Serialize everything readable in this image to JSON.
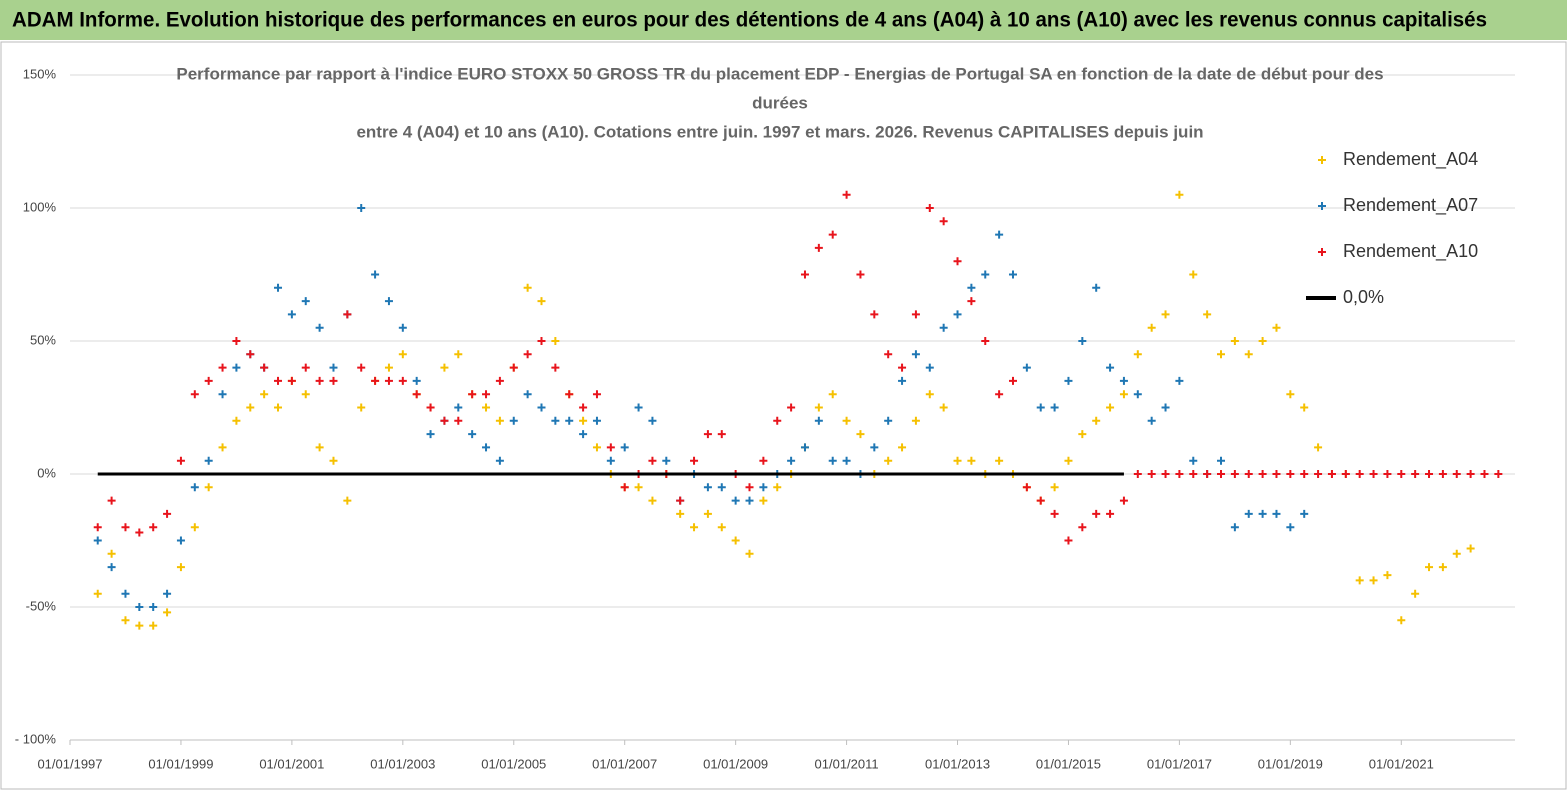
{
  "header": {
    "title": "ADAM Informe. Evolution historique des performances en euros pour des détentions de 4 ans (A04) à 10 ans (A10) avec les revenus connus capitalisés"
  },
  "chart_data": {
    "type": "scatter",
    "title": [
      "Performance par rapport à l'indice EURO STOXX 50 GROSS TR  du placement EDP - Energias de Portugal SA en fonction de la date de début pour des",
      "durées",
      "entre 4 (A04) et 10 ans (A10). Cotations entre juin. 1997 et mars. 2026. Revenus CAPITALISES depuis juin"
    ],
    "x": [
      1997.5,
      1997.75,
      1998,
      1998.25,
      1998.5,
      1998.75,
      1999,
      1999.25,
      1999.5,
      1999.75,
      2000,
      2000.25,
      2000.5,
      2000.75,
      2001,
      2001.25,
      2001.5,
      2001.75,
      2002,
      2002.25,
      2002.5,
      2002.75,
      2003,
      2003.25,
      2003.5,
      2003.75,
      2004,
      2004.25,
      2004.5,
      2004.75,
      2005,
      2005.25,
      2005.5,
      2005.75,
      2006,
      2006.25,
      2006.5,
      2006.75,
      2007,
      2007.25,
      2007.5,
      2007.75,
      2008,
      2008.25,
      2008.5,
      2008.75,
      2009,
      2009.25,
      2009.5,
      2009.75,
      2010,
      2010.25,
      2010.5,
      2010.75,
      2011,
      2011.25,
      2011.5,
      2011.75,
      2012,
      2012.25,
      2012.5,
      2012.75,
      2013,
      2013.25,
      2013.5,
      2013.75,
      2014,
      2014.25,
      2014.5,
      2014.75,
      2015,
      2015.25,
      2015.5,
      2015.75,
      2016,
      2016.25,
      2016.5,
      2016.75,
      2017,
      2017.25,
      2017.5,
      2017.75,
      2018,
      2018.25,
      2018.5,
      2018.75,
      2019,
      2019.25,
      2019.5,
      2019.75,
      2020,
      2020.25,
      2020.5,
      2020.75,
      2021,
      2021.25,
      2021.5,
      2021.75,
      2022,
      2022.25,
      2022.5,
      2022.75
    ],
    "series": [
      {
        "name": "Rendement_A04",
        "color": "#f5c000",
        "marker": "+",
        "values": [
          -45,
          -30,
          -55,
          -57,
          -57,
          -52,
          -35,
          -20,
          -5,
          10,
          20,
          25,
          30,
          25,
          35,
          30,
          10,
          5,
          -10,
          25,
          35,
          40,
          45,
          30,
          25,
          40,
          45,
          30,
          25,
          20,
          40,
          70,
          65,
          50,
          30,
          20,
          10,
          0,
          -5,
          -5,
          -10,
          0,
          -15,
          -20,
          -15,
          -20,
          -25,
          -30,
          -10,
          -5,
          0,
          10,
          25,
          30,
          20,
          15,
          0,
          5,
          10,
          20,
          30,
          25,
          5,
          5,
          0,
          5,
          0,
          -5,
          -10,
          -5,
          5,
          15,
          20,
          25,
          30,
          45,
          55,
          60,
          105,
          75,
          60,
          45,
          50,
          45,
          50,
          55,
          30,
          25,
          10,
          0,
          0,
          -40,
          -40,
          -38,
          -55,
          -45,
          -35,
          -35,
          -30,
          -28,
          null,
          null
        ]
      },
      {
        "name": "Rendement_A07",
        "color": "#1f77b4",
        "marker": "+",
        "values": [
          -25,
          -35,
          -45,
          -50,
          -50,
          -45,
          -25,
          -5,
          5,
          30,
          40,
          45,
          40,
          70,
          60,
          65,
          55,
          40,
          60,
          100,
          75,
          65,
          55,
          35,
          15,
          20,
          25,
          15,
          10,
          5,
          20,
          30,
          25,
          20,
          20,
          15,
          20,
          5,
          10,
          25,
          20,
          5,
          -10,
          0,
          -5,
          -5,
          -10,
          -10,
          -5,
          0,
          5,
          10,
          20,
          5,
          5,
          0,
          10,
          20,
          35,
          45,
          40,
          55,
          60,
          70,
          75,
          90,
          75,
          40,
          25,
          25,
          35,
          50,
          70,
          40,
          35,
          30,
          20,
          25,
          35,
          5,
          0,
          5,
          -20,
          -15,
          -15,
          -15,
          -20,
          -15,
          null,
          null,
          null,
          null,
          null,
          null,
          null,
          null,
          null,
          null,
          null,
          null,
          null,
          null
        ]
      },
      {
        "name": "Rendement_A10",
        "color": "#e8141c",
        "marker": "+",
        "values": [
          -20,
          -10,
          -20,
          -22,
          -20,
          -15,
          5,
          30,
          35,
          40,
          50,
          45,
          40,
          35,
          35,
          40,
          35,
          35,
          60,
          40,
          35,
          35,
          35,
          30,
          25,
          20,
          20,
          30,
          30,
          35,
          40,
          45,
          50,
          40,
          30,
          25,
          30,
          10,
          -5,
          0,
          5,
          0,
          -10,
          5,
          15,
          15,
          0,
          -5,
          5,
          20,
          25,
          75,
          85,
          90,
          105,
          75,
          60,
          45,
          40,
          60,
          100,
          95,
          80,
          65,
          50,
          30,
          35,
          -5,
          -10,
          -15,
          -25,
          -20,
          -15,
          -15,
          -10,
          0,
          0,
          0,
          0,
          0,
          0,
          0,
          0,
          0,
          0,
          0,
          0,
          0,
          0,
          0,
          0,
          0,
          0,
          0,
          0,
          0,
          0,
          0,
          0,
          0,
          0,
          0
        ]
      },
      {
        "name": "0,0%",
        "color": "#000000",
        "marker": "line",
        "values": [
          0,
          0,
          0,
          0,
          0,
          0,
          0,
          0,
          0,
          0,
          0,
          0,
          0,
          0,
          0,
          0,
          0,
          0,
          0,
          0,
          0,
          0,
          0,
          0,
          0,
          0,
          0,
          0,
          0,
          0,
          0,
          0,
          0,
          0,
          0,
          0,
          0,
          0,
          0,
          0,
          0,
          0,
          0,
          0,
          0,
          0,
          0,
          0,
          0,
          0,
          0,
          0,
          0,
          0,
          0,
          0,
          0,
          0,
          0,
          0,
          0,
          0,
          0,
          0,
          0,
          0,
          0,
          0,
          0,
          0,
          0,
          0,
          0,
          0,
          0,
          null,
          null,
          null,
          null,
          null,
          null,
          null,
          null,
          null,
          null,
          null,
          null,
          null,
          null,
          null,
          null,
          null,
          null,
          null,
          null,
          null,
          null,
          null,
          null,
          null,
          null,
          null
        ]
      }
    ],
    "xlim": [
      1997,
      2023.05
    ],
    "xticks": [
      {
        "value": 1997,
        "label": "01/01/1997"
      },
      {
        "value": 1999,
        "label": "01/01/1999"
      },
      {
        "value": 2001,
        "label": "01/01/2001"
      },
      {
        "value": 2003,
        "label": "01/01/2003"
      },
      {
        "value": 2005,
        "label": "01/01/2005"
      },
      {
        "value": 2007,
        "label": "01/01/2007"
      },
      {
        "value": 2009,
        "label": "01/01/2009"
      },
      {
        "value": 2011,
        "label": "01/01/2011"
      },
      {
        "value": 2013,
        "label": "01/01/2013"
      },
      {
        "value": 2015,
        "label": "01/01/2015"
      },
      {
        "value": 2017,
        "label": "01/01/2017"
      },
      {
        "value": 2019,
        "label": "01/01/2019"
      },
      {
        "value": 2021,
        "label": "01/01/2021"
      }
    ],
    "ylim": [
      -100,
      150
    ],
    "yticks": [
      {
        "value": -100,
        "label": "- 100%"
      },
      {
        "value": -50,
        "label": "-50%"
      },
      {
        "value": 0,
        "label": "0%"
      },
      {
        "value": 50,
        "label": "50%"
      },
      {
        "value": 100,
        "label": "100%"
      },
      {
        "value": 150,
        "label": "150%"
      }
    ],
    "grid": true,
    "legend": "top-right"
  }
}
